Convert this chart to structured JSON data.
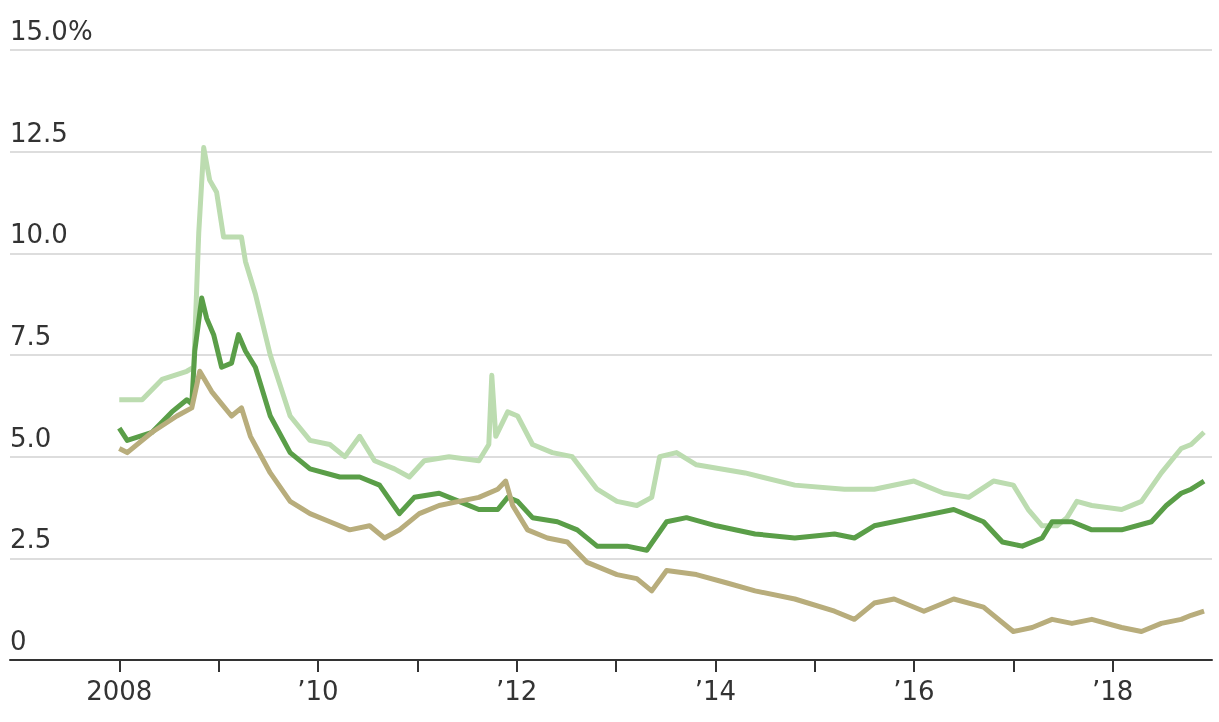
{
  "chart_data": {
    "type": "line",
    "grid": "y",
    "marker": "none",
    "line_style": "solid",
    "xlim": [
      2006.9,
      2019
    ],
    "xticks": [
      {
        "value": 2008,
        "label": "2008"
      },
      {
        "value": 2009,
        "label": null
      },
      {
        "value": 2010,
        "label": "’10"
      },
      {
        "value": 2011,
        "label": null
      },
      {
        "value": 2012,
        "label": "’12"
      },
      {
        "value": 2013,
        "label": null
      },
      {
        "value": 2014,
        "label": "’14"
      },
      {
        "value": 2015,
        "label": null
      },
      {
        "value": 2016,
        "label": "’16"
      },
      {
        "value": 2017,
        "label": null
      },
      {
        "value": 2018,
        "label": "’18"
      }
    ],
    "ylim": [
      0,
      15
    ],
    "yticks": [
      {
        "value": 0,
        "label": "0"
      },
      {
        "value": 2.5,
        "label": "2.5"
      },
      {
        "value": 5,
        "label": "5.0"
      },
      {
        "value": 7.5,
        "label": "7.5"
      },
      {
        "value": 10,
        "label": "10.0"
      },
      {
        "value": 12.5,
        "label": "12.5"
      },
      {
        "value": 15,
        "label": "15.0%"
      }
    ],
    "series": [
      {
        "color": "#bcdcb0",
        "x": [
          2008.0,
          2008.23,
          2008.43,
          2008.68,
          2008.75,
          2008.8,
          2008.85,
          2008.91,
          2008.98,
          2009.05,
          2009.15,
          2009.23,
          2009.27,
          2009.37,
          2009.52,
          2009.72,
          2009.92,
          2010.12,
          2010.27,
          2010.42,
          2010.57,
          2010.77,
          2010.92,
          2011.07,
          2011.32,
          2011.62,
          2011.72,
          2011.75,
          2011.79,
          2011.91,
          2012.01,
          2012.16,
          2012.36,
          2012.56,
          2012.81,
          2013.01,
          2013.21,
          2013.36,
          2013.44,
          2013.61,
          2013.81,
          2014.3,
          2014.8,
          2015.3,
          2015.6,
          2016.0,
          2016.3,
          2016.55,
          2016.8,
          2017.0,
          2017.15,
          2017.29,
          2017.44,
          2017.54,
          2017.64,
          2017.79,
          2018.09,
          2018.29,
          2018.49,
          2018.69,
          2018.79,
          2018.92
        ],
        "values": [
          6.4,
          6.4,
          6.9,
          7.1,
          7.2,
          10.5,
          12.6,
          11.8,
          11.5,
          10.4,
          10.4,
          10.4,
          9.8,
          9.0,
          7.5,
          6.0,
          5.4,
          5.3,
          5.0,
          5.5,
          4.9,
          4.7,
          4.5,
          4.9,
          5.0,
          4.9,
          5.3,
          7.0,
          5.5,
          6.1,
          6.0,
          5.3,
          5.1,
          5.0,
          4.2,
          3.9,
          3.8,
          4.0,
          5.0,
          5.1,
          4.8,
          4.6,
          4.3,
          4.2,
          4.2,
          4.4,
          4.1,
          4.0,
          4.4,
          4.3,
          3.7,
          3.3,
          3.3,
          3.5,
          3.9,
          3.8,
          3.7,
          3.9,
          4.6,
          5.2,
          5.3,
          5.6
        ]
      },
      {
        "color": "#5a9e48",
        "x": [
          2008.0,
          2008.08,
          2008.33,
          2008.53,
          2008.68,
          2008.73,
          2008.76,
          2008.83,
          2008.88,
          2008.95,
          2009.03,
          2009.13,
          2009.2,
          2009.27,
          2009.37,
          2009.52,
          2009.72,
          2009.92,
          2010.22,
          2010.42,
          2010.62,
          2010.82,
          2010.97,
          2011.22,
          2011.42,
          2011.62,
          2011.81,
          2011.91,
          2012.01,
          2012.16,
          2012.41,
          2012.61,
          2012.81,
          2013.11,
          2013.31,
          2013.51,
          2013.71,
          2014.01,
          2014.4,
          2014.8,
          2015.2,
          2015.4,
          2015.6,
          2016.0,
          2016.4,
          2016.7,
          2016.89,
          2017.09,
          2017.29,
          2017.39,
          2017.59,
          2017.79,
          2018.09,
          2018.39,
          2018.54,
          2018.69,
          2018.79,
          2018.92
        ],
        "values": [
          5.7,
          5.4,
          5.6,
          6.1,
          6.4,
          6.3,
          7.6,
          8.9,
          8.4,
          8.0,
          7.2,
          7.3,
          8.0,
          7.6,
          7.2,
          6.0,
          5.1,
          4.7,
          4.5,
          4.5,
          4.3,
          3.6,
          4.0,
          4.1,
          3.9,
          3.7,
          3.7,
          4.0,
          3.9,
          3.5,
          3.4,
          3.2,
          2.8,
          2.8,
          2.7,
          3.4,
          3.5,
          3.3,
          3.1,
          3.0,
          3.1,
          3.0,
          3.3,
          3.5,
          3.7,
          3.4,
          2.9,
          2.8,
          3.0,
          3.4,
          3.4,
          3.2,
          3.2,
          3.4,
          3.8,
          4.1,
          4.2,
          4.4
        ]
      },
      {
        "color": "#b8ad7c",
        "x": [
          2008.0,
          2008.08,
          2008.33,
          2008.58,
          2008.73,
          2008.81,
          2008.93,
          2009.03,
          2009.13,
          2009.23,
          2009.32,
          2009.52,
          2009.72,
          2009.92,
          2010.12,
          2010.32,
          2010.52,
          2010.67,
          2010.82,
          2011.02,
          2011.22,
          2011.42,
          2011.62,
          2011.81,
          2011.89,
          2011.96,
          2012.11,
          2012.31,
          2012.51,
          2012.71,
          2013.01,
          2013.21,
          2013.36,
          2013.51,
          2013.81,
          2014.11,
          2014.4,
          2014.8,
          2015.2,
          2015.4,
          2015.6,
          2015.8,
          2016.1,
          2016.4,
          2016.7,
          2017.0,
          2017.19,
          2017.39,
          2017.59,
          2017.79,
          2018.09,
          2018.29,
          2018.49,
          2018.69,
          2018.79,
          2018.92
        ],
        "values": [
          5.2,
          5.1,
          5.6,
          6.0,
          6.2,
          7.1,
          6.6,
          6.3,
          6.0,
          6.2,
          5.5,
          4.6,
          3.9,
          3.6,
          3.4,
          3.2,
          3.3,
          3.0,
          3.2,
          3.6,
          3.8,
          3.9,
          4.0,
          4.2,
          4.4,
          3.8,
          3.2,
          3.0,
          2.9,
          2.4,
          2.1,
          2.0,
          1.7,
          2.2,
          2.1,
          1.9,
          1.7,
          1.5,
          1.2,
          1.0,
          1.4,
          1.5,
          1.2,
          1.5,
          1.3,
          0.7,
          0.8,
          1.0,
          0.9,
          1.0,
          0.8,
          0.7,
          0.9,
          1.0,
          1.1,
          1.2
        ]
      }
    ]
  }
}
